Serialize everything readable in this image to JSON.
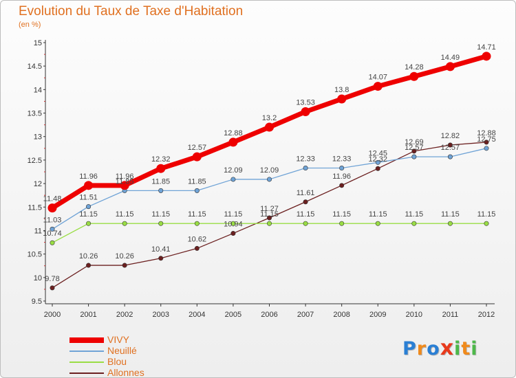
{
  "header": {
    "title": "Evolution du Taux de Taxe d'Habitation",
    "subtitle": "(en %)"
  },
  "chart_data": {
    "type": "line",
    "title": "Evolution du Taux de Taxe d'Habitation",
    "subtitle": "(en %)",
    "xlabel": "",
    "ylabel": "",
    "categories": [
      "2000",
      "2001",
      "2002",
      "2003",
      "2004",
      "2005",
      "2006",
      "2007",
      "2008",
      "2009",
      "2010",
      "2011",
      "2012"
    ],
    "ylim": [
      9.5,
      15
    ],
    "yticks": [
      "9.5",
      "10",
      "10.5",
      "11",
      "11.5",
      "12",
      "12.5",
      "13",
      "13.5",
      "14",
      "14.5",
      "15"
    ],
    "grid": false,
    "legend_position": "bottom-left",
    "series": [
      {
        "name": "VIVY",
        "color": "#ee0000",
        "values": [
          11.48,
          11.96,
          11.96,
          12.32,
          12.57,
          12.88,
          13.2,
          13.53,
          13.8,
          14.07,
          14.28,
          14.49,
          14.71
        ],
        "labels": [
          "11.48",
          "11.96",
          "11.96",
          "12.32",
          "12.57",
          "12.88",
          "13.2",
          "13.53",
          "13.8",
          "14.07",
          "14.28",
          "14.49",
          "14.71"
        ]
      },
      {
        "name": "Neuillé",
        "color": "#6fa3d6",
        "values": [
          11.03,
          11.51,
          11.85,
          11.85,
          11.85,
          12.09,
          12.09,
          12.33,
          12.33,
          12.45,
          12.57,
          12.57,
          12.75
        ],
        "labels": [
          "11.03",
          "11.51",
          "11.85",
          "11.85",
          "11.85",
          "12.09",
          "12.09",
          "12.33",
          "12.33",
          "12.45",
          "12.57",
          "12.57",
          "12.75"
        ]
      },
      {
        "name": "Blou",
        "color": "#99dd44",
        "values": [
          10.74,
          11.15,
          11.15,
          11.15,
          11.15,
          11.15,
          11.15,
          11.15,
          11.15,
          11.15,
          11.15,
          11.15,
          11.15
        ],
        "labels": [
          "10.74",
          "11.15",
          "11.15",
          "11.15",
          "11.15",
          "11.15",
          "11.15",
          "11.15",
          "11.15",
          "11.15",
          "11.15",
          "11.15",
          "11.15"
        ]
      },
      {
        "name": "Allonnes",
        "color": "#6b1f1f",
        "values": [
          9.78,
          10.26,
          10.26,
          10.41,
          10.62,
          10.94,
          11.27,
          11.61,
          11.96,
          12.32,
          12.69,
          12.82,
          12.88
        ],
        "labels": [
          "9.78",
          "10.26",
          "10.26",
          "10.41",
          "10.62",
          "10.94",
          "11.27",
          "11.61",
          "11.96",
          "12.32",
          "12.69",
          "12.82",
          "12.88"
        ]
      }
    ]
  },
  "logo": {
    "text": "Proxiti",
    "letters": [
      "P",
      "r",
      "o",
      "x",
      "i",
      "t",
      "i"
    ],
    "colors": [
      "#2a7fd4",
      "#f08a1c",
      "#2a7fd4",
      "#e83a1c",
      "#4db84a",
      "#f08a1c",
      "#4db84a"
    ]
  }
}
